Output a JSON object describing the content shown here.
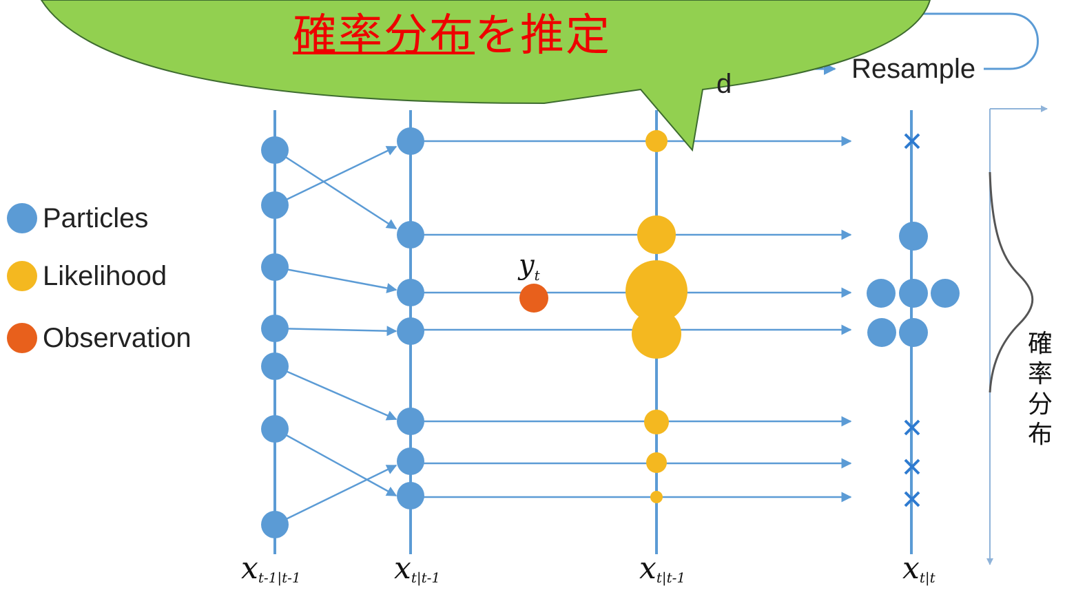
{
  "callout": {
    "text_underlined": "確率分布",
    "text_rest": "を推定",
    "bg_color": "#92d050",
    "text_color": "#ee0000"
  },
  "legend": [
    {
      "label": "Particles",
      "color": "#5b9bd5"
    },
    {
      "label": "Likelihood",
      "color": "#f4b820"
    },
    {
      "label": "Observation",
      "color": "#e8601c"
    }
  ],
  "steps": {
    "resample": "Resample",
    "partial_label": "d"
  },
  "axes": [
    {
      "base": "x",
      "sub": "t-1|t-1"
    },
    {
      "base": "x",
      "sub": "t|t-1"
    },
    {
      "base": "x",
      "sub": "t|t-1"
    },
    {
      "base": "x",
      "sub": "t|t"
    }
  ],
  "observation": {
    "base": "y",
    "sub": "t"
  },
  "side_label": "確率分布",
  "colors": {
    "line": "#5b9bd5",
    "particle": "#5b9bd5",
    "likelihood": "#f4b820",
    "observation": "#e8601c"
  }
}
